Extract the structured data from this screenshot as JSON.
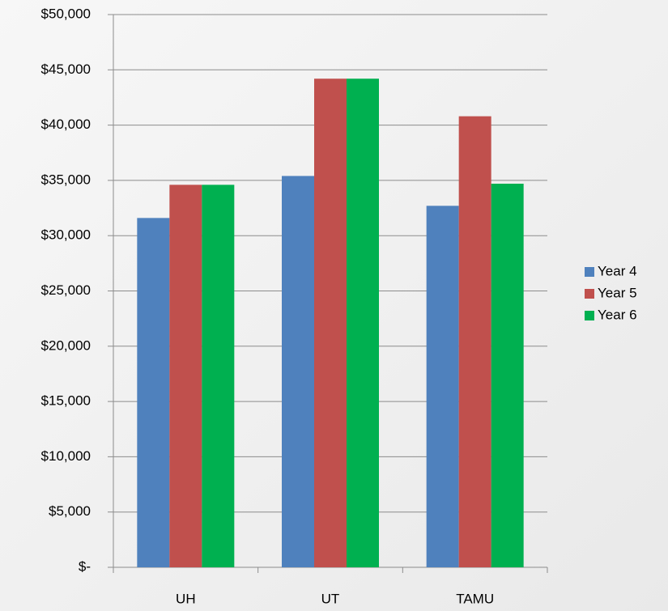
{
  "chart_data": {
    "type": "bar",
    "categories": [
      "UH",
      "UT",
      "TAMU"
    ],
    "series": [
      {
        "name": "Year 4",
        "color": "#4f81bd",
        "values": [
          31600,
          35400,
          32700
        ]
      },
      {
        "name": "Year 5",
        "color": "#c0504d",
        "values": [
          34600,
          44200,
          40800
        ]
      },
      {
        "name": "Year 6",
        "color": "#00b050",
        "values": [
          34600,
          44200,
          34700
        ]
      }
    ],
    "ylim": [
      0,
      50000
    ],
    "yticks": [
      {
        "value": 0,
        "label": "$-"
      },
      {
        "value": 5000,
        "label": "$5,000"
      },
      {
        "value": 10000,
        "label": "$10,000"
      },
      {
        "value": 15000,
        "label": "$15,000"
      },
      {
        "value": 20000,
        "label": "$20,000"
      },
      {
        "value": 25000,
        "label": "$25,000"
      },
      {
        "value": 30000,
        "label": "$30,000"
      },
      {
        "value": 35000,
        "label": "$35,000"
      },
      {
        "value": 40000,
        "label": "$40,000"
      },
      {
        "value": 45000,
        "label": "$45,000"
      },
      {
        "value": 50000,
        "label": "$50,000"
      }
    ],
    "grid": true,
    "legend": "right"
  }
}
